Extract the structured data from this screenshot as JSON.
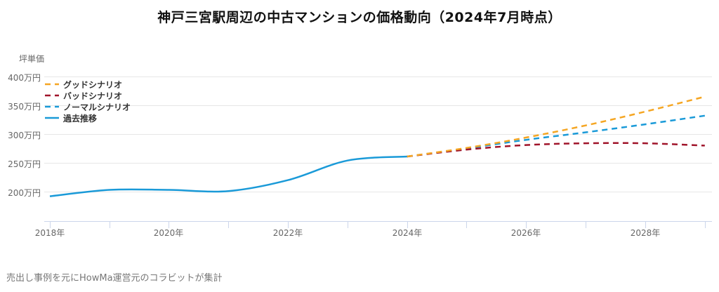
{
  "title": "神戸三宮駅周辺の中古マンションの価格動向（2024年7月時点）",
  "footer": "売出し事例を元にHowMa運営元のコラビットが集計",
  "chart_data": {
    "type": "line",
    "title": "神戸三宮駅周辺の中古マンションの価格動向（2024年7月時点）",
    "ylabel": "坪単価",
    "xlabel": "",
    "ylim": [
      150,
      400
    ],
    "yticks": [
      "400万円",
      "350万円",
      "300万円",
      "250万円",
      "200万円"
    ],
    "xticks": [
      "2018年",
      "2020年",
      "2022年",
      "2024年",
      "2026年",
      "2028年"
    ],
    "grid": true,
    "legend_position": "top-left inside",
    "series": [
      {
        "name": "グッドシナリオ",
        "style": "dashed",
        "color": "#F5A623",
        "x": [
          2024,
          2025,
          2026,
          2027,
          2028,
          2029
        ],
        "values": [
          261,
          276,
          294,
          315,
          339,
          365
        ]
      },
      {
        "name": "バッドシナリオ",
        "style": "dashed",
        "color": "#A0142A",
        "x": [
          2024,
          2025,
          2026,
          2027,
          2028,
          2029
        ],
        "values": [
          261,
          273,
          281,
          284,
          284,
          280
        ]
      },
      {
        "name": "ノーマルシナリオ",
        "style": "dashed",
        "color": "#1A9AD8",
        "x": [
          2024,
          2025,
          2026,
          2027,
          2028,
          2029
        ],
        "values": [
          261,
          275,
          290,
          303,
          317,
          332
        ]
      },
      {
        "name": "過去推移",
        "style": "solid",
        "color": "#1A9AD8",
        "x": [
          2018,
          2019,
          2020,
          2021,
          2022,
          2023,
          2024
        ],
        "values": [
          192,
          203,
          203,
          201,
          220,
          254,
          261
        ]
      }
    ]
  },
  "legend": [
    {
      "label": "グッドシナリオ",
      "color": "#F5A623",
      "style": "dashed"
    },
    {
      "label": "バッドシナリオ",
      "color": "#A0142A",
      "style": "dashed"
    },
    {
      "label": "ノーマルシナリオ",
      "color": "#1A9AD8",
      "style": "dashed"
    },
    {
      "label": "過去推移",
      "color": "#1A9AD8",
      "style": "solid"
    }
  ]
}
